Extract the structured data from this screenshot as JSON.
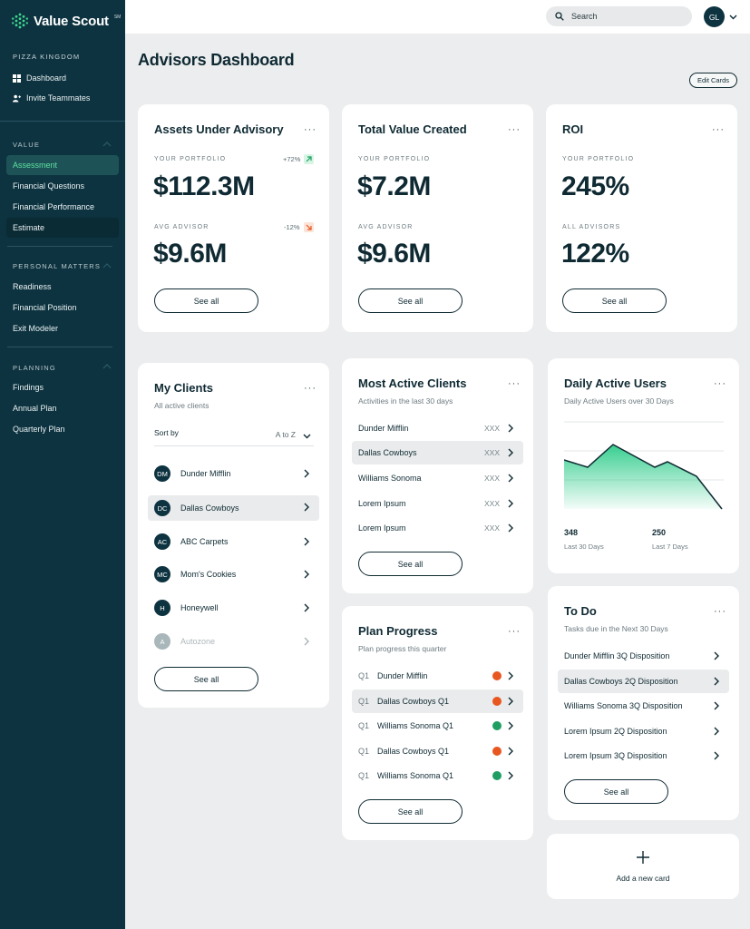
{
  "brand": {
    "name": "Value Scout",
    "mark": "SM"
  },
  "sidebar": {
    "org": "PIZZA KINGDOM",
    "top_links": [
      {
        "label": "Dashboard",
        "icon": "grid-icon"
      },
      {
        "label": "Invite Teammates",
        "icon": "add-user-icon"
      }
    ],
    "sections": [
      {
        "title": "VALUE",
        "items": [
          "Assessment",
          "Financial Questions",
          "Financial Performance",
          "Estimate"
        ]
      },
      {
        "title": "PERSONAL MATTERS",
        "items": [
          "Readiness",
          "Financial Position",
          "Exit Modeler"
        ]
      },
      {
        "title": "PLANNING",
        "items": [
          "Findings",
          "Annual Plan",
          "Quarterly Plan"
        ]
      }
    ],
    "active_item": "Assessment"
  },
  "topbar": {
    "search_placeholder": "Search",
    "user_initials": "GL"
  },
  "page": {
    "title": "Advisors Dashboard",
    "edit_cards_label": "Edit Cards"
  },
  "common": {
    "see_all": "See all",
    "more": "···"
  },
  "assets": {
    "title": "Assets Under Advisory",
    "portfolio_label": "YOUR PORTFOLIO",
    "portfolio_value": "$112.3M",
    "portfolio_change": "+72%",
    "advisor_label": "AVG ADVISOR",
    "advisor_value": "$9.6M",
    "advisor_change": "-12%"
  },
  "total_value": {
    "title": "Total Value Created",
    "portfolio_label": "YOUR PORTFOLIO",
    "portfolio_value": "$7.2M",
    "advisor_label": "AVG ADVISOR",
    "advisor_value": "$9.6M"
  },
  "roi": {
    "title": "ROI",
    "portfolio_label": "YOUR PORTFOLIO",
    "portfolio_value": "245%",
    "advisor_label": "ALL ADVISORS",
    "advisor_value": "122%"
  },
  "my_clients": {
    "title": "My Clients",
    "subtitle": "All active clients",
    "sort_label": "Sort by",
    "sort_value": "A to Z",
    "clients": [
      {
        "initials": "DM",
        "name": "Dunder Mifflin"
      },
      {
        "initials": "DC",
        "name": "Dallas Cowboys"
      },
      {
        "initials": "AC",
        "name": "ABC Carpets"
      },
      {
        "initials": "MC",
        "name": "Mom's Cookies"
      },
      {
        "initials": "H",
        "name": "Honeywell"
      },
      {
        "initials": "A",
        "name": "Autozone"
      }
    ]
  },
  "most_active": {
    "title": "Most Active Clients",
    "subtitle": "Activities in the last 30 days",
    "rows": [
      {
        "name": "Dunder Mifflin",
        "value": "XXX"
      },
      {
        "name": "Dallas Cowboys",
        "value": "XXX"
      },
      {
        "name": "Williams Sonoma",
        "value": "XXX"
      },
      {
        "name": "Lorem Ipsum",
        "value": "XXX"
      },
      {
        "name": "Lorem Ipsum",
        "value": "XXX"
      }
    ]
  },
  "daily_active": {
    "title": "Daily Active Users",
    "subtitle": "Daily Active Users over 30 Days",
    "stat1_value": "348",
    "stat1_label": "Last 30 Days",
    "stat2_value": "250",
    "stat2_label": "Last 7 Days",
    "accent": "#2ecc8a"
  },
  "plan_progress": {
    "title": "Plan Progress",
    "subtitle": "Plan progress this quarter",
    "rows": [
      {
        "quarter": "Q1",
        "name": "Dunder Mifflin",
        "status": "#e8571f"
      },
      {
        "quarter": "Q1",
        "name": "Dallas Cowboys Q1",
        "status": "#e8571f"
      },
      {
        "quarter": "Q1",
        "name": "Williams Sonoma Q1",
        "status": "#1f9e63"
      },
      {
        "quarter": "Q1",
        "name": "Dallas Cowboys Q1",
        "status": "#e8571f"
      },
      {
        "quarter": "Q1",
        "name": "Williams Sonoma Q1",
        "status": "#1f9e63"
      }
    ]
  },
  "todo": {
    "title": "To Do",
    "subtitle": "Tasks due in the Next 30 Days",
    "rows": [
      "Dunder Mifflin 3Q Disposition",
      "Dallas Cowboys 2Q Disposition",
      "Williams Sonoma 3Q Disposition",
      "Lorem Ipsum 2Q Disposition",
      "Lorem Ipsum 3Q Disposition"
    ]
  },
  "add_card": {
    "label": "Add a new card"
  }
}
